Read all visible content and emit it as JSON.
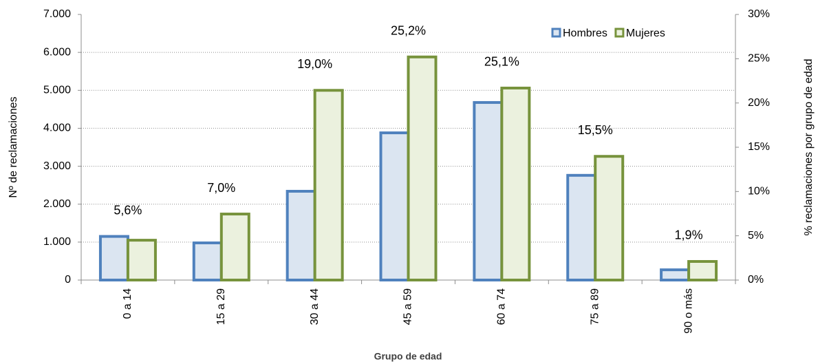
{
  "chart_data": {
    "type": "bar",
    "categories": [
      "0 a 14",
      "15 a 29",
      "30 a 44",
      "45 a 59",
      "60 a 74",
      "75 a 89",
      "90 o más"
    ],
    "series": [
      {
        "name": "Hombres",
        "color": "#4f81bd",
        "fill": "#dbe5f1",
        "values": [
          1150,
          980,
          2340,
          3880,
          4680,
          2760,
          270
        ]
      },
      {
        "name": "Mujeres",
        "color": "#77933c",
        "fill": "#ebf1de",
        "values": [
          1050,
          1740,
          5000,
          5880,
          5060,
          3260,
          490
        ]
      },
      {
        "axis": "y2",
        "values": [
          5.6,
          7.0,
          19.0,
          25.2,
          25.1,
          15.5,
          1.9
        ],
        "value_labels": [
          "5,6%",
          "7,0%",
          "19,0%",
          "25,2%",
          "25,1%",
          "15,5%",
          "1,9%"
        ]
      }
    ],
    "x_label": "Grupo de edad",
    "y_label": "Nº de reclamaciones",
    "y2_label": "% reclamaciones por grupo de edad",
    "ylim": [
      0,
      7000
    ],
    "yticks": [
      0,
      {
        "value": 1000,
        "label": "1.000"
      },
      {
        "value": 2000,
        "label": "2.000"
      },
      {
        "value": 3000,
        "label": "3.000"
      },
      {
        "value": 4000,
        "label": "4.000"
      },
      {
        "value": 5000,
        "label": "5.000"
      },
      {
        "value": 6000,
        "label": "6.000"
      },
      {
        "value": 7000,
        "label": "7.000"
      }
    ],
    "y2lim": [
      0,
      30
    ],
    "y2ticks": [
      {
        "value": 0,
        "label": "0%"
      },
      {
        "value": 5,
        "label": "5%"
      },
      {
        "value": 10,
        "label": "10%"
      },
      {
        "value": 15,
        "label": "15%"
      },
      {
        "value": 20,
        "label": "20%"
      },
      {
        "value": 25,
        "label": "25%"
      },
      {
        "value": 30,
        "label": "30%"
      }
    ],
    "grid": true,
    "legend": "top-right"
  }
}
